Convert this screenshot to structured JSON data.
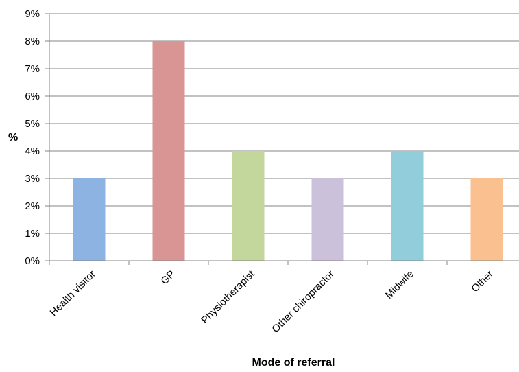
{
  "chart_data": {
    "type": "bar",
    "categories": [
      "Health visitor",
      "GP",
      "Physiotherapist",
      "Other chiropractor",
      "Midwife",
      "Other"
    ],
    "values": [
      3,
      8,
      4,
      3,
      4,
      3
    ],
    "bar_colors": [
      "#8db3e2",
      "#d99594",
      "#c3d69b",
      "#ccc1da",
      "#92cddc",
      "#fac090"
    ],
    "title": "",
    "xlabel": "Mode of referral",
    "ylabel": "%",
    "ylim": [
      0,
      9
    ],
    "y_ticks": [
      "0%",
      "1%",
      "2%",
      "3%",
      "4%",
      "5%",
      "6%",
      "7%",
      "8%",
      "9%"
    ],
    "grid": true,
    "legend": "none"
  }
}
